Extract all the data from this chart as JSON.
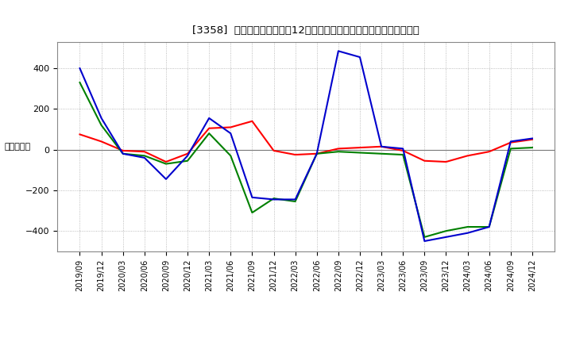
{
  "title": "[3358]  キャッシュフローの12か月移動合計の対前年同期増減額の推移",
  "ylabel": "（百万円）",
  "background_color": "#ffffff",
  "plot_bg_color": "#ffffff",
  "grid_color": "#aaaaaa",
  "ylim": [
    -500,
    530
  ],
  "yticks": [
    -400,
    -200,
    0,
    200,
    400
  ],
  "x_labels": [
    "2019/09",
    "2019/12",
    "2020/03",
    "2020/06",
    "2020/09",
    "2020/12",
    "2021/03",
    "2021/06",
    "2021/09",
    "2021/12",
    "2022/03",
    "2022/06",
    "2022/09",
    "2022/12",
    "2023/03",
    "2023/06",
    "2023/09",
    "2023/12",
    "2024/03",
    "2024/06",
    "2024/09",
    "2024/12"
  ],
  "operating_cf": [
    75,
    40,
    -5,
    -10,
    -60,
    -20,
    105,
    110,
    140,
    -5,
    -25,
    -20,
    5,
    10,
    15,
    -5,
    -55,
    -60,
    -30,
    -10,
    35,
    50
  ],
  "investing_cf": [
    330,
    120,
    -20,
    -30,
    -70,
    -55,
    80,
    -30,
    -310,
    -240,
    -255,
    -20,
    -10,
    -15,
    -20,
    -25,
    -430,
    -400,
    -380,
    -380,
    5,
    10
  ],
  "free_cf": [
    400,
    155,
    -20,
    -40,
    -145,
    -30,
    155,
    80,
    -235,
    -245,
    -245,
    -20,
    485,
    455,
    15,
    5,
    -450,
    -430,
    -410,
    -380,
    40,
    55
  ],
  "operating_color": "#ff0000",
  "investing_color": "#008000",
  "free_color": "#0000cd"
}
